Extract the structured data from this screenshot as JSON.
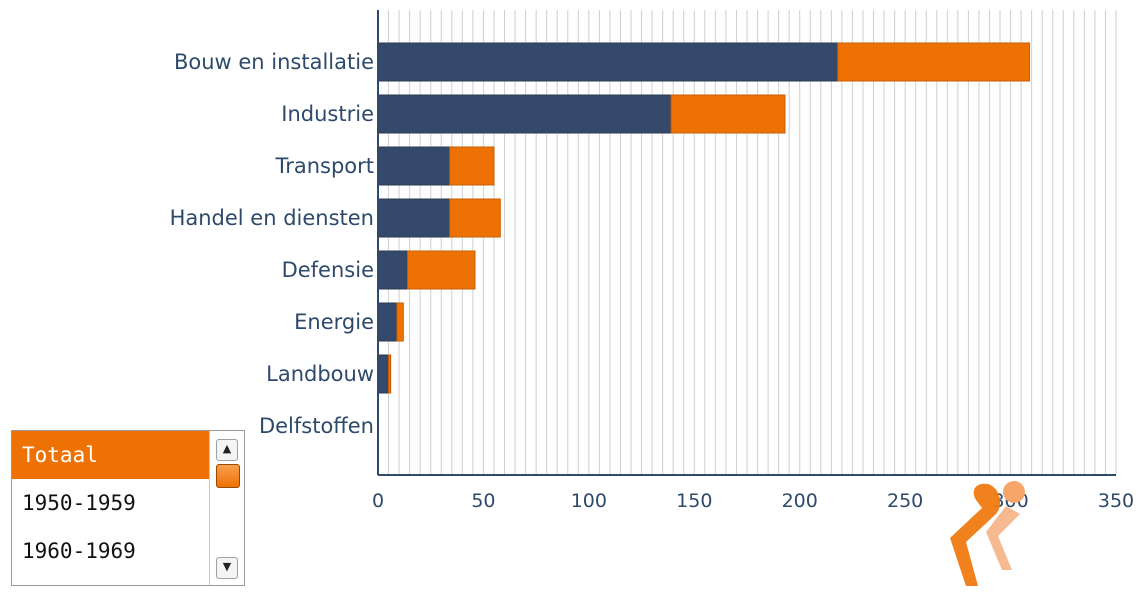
{
  "chart_data": {
    "type": "bar",
    "orientation": "horizontal",
    "stacked": true,
    "categories": [
      "Bouw en installatie",
      "Industrie",
      "Transport",
      "Handel en diensten",
      "Defensie",
      "Energie",
      "Landbouw",
      "Delfstoffen"
    ],
    "series": [
      {
        "values": [
          218,
          139,
          34,
          34,
          14,
          9,
          5,
          0
        ]
      },
      {
        "values": [
          91,
          54,
          21,
          24,
          32,
          3,
          1,
          0
        ]
      }
    ],
    "xlim": [
      0,
      350
    ],
    "xticks": [
      0,
      50,
      100,
      150,
      200,
      250,
      300,
      350
    ],
    "grid": true,
    "title": "",
    "xlabel": "",
    "ylabel": ""
  },
  "colors": {
    "series_1": "#34496b",
    "series_2": "#ee7203",
    "axis": "#2e4a6b",
    "grid": "#cfcfcf",
    "selected": "#ee7203"
  },
  "period_list": {
    "items": [
      "Totaal",
      "1950-1959",
      "1960-1969"
    ],
    "selected": "Totaal"
  },
  "icons": {
    "scroll_up": "▲",
    "scroll_down": "▼"
  }
}
